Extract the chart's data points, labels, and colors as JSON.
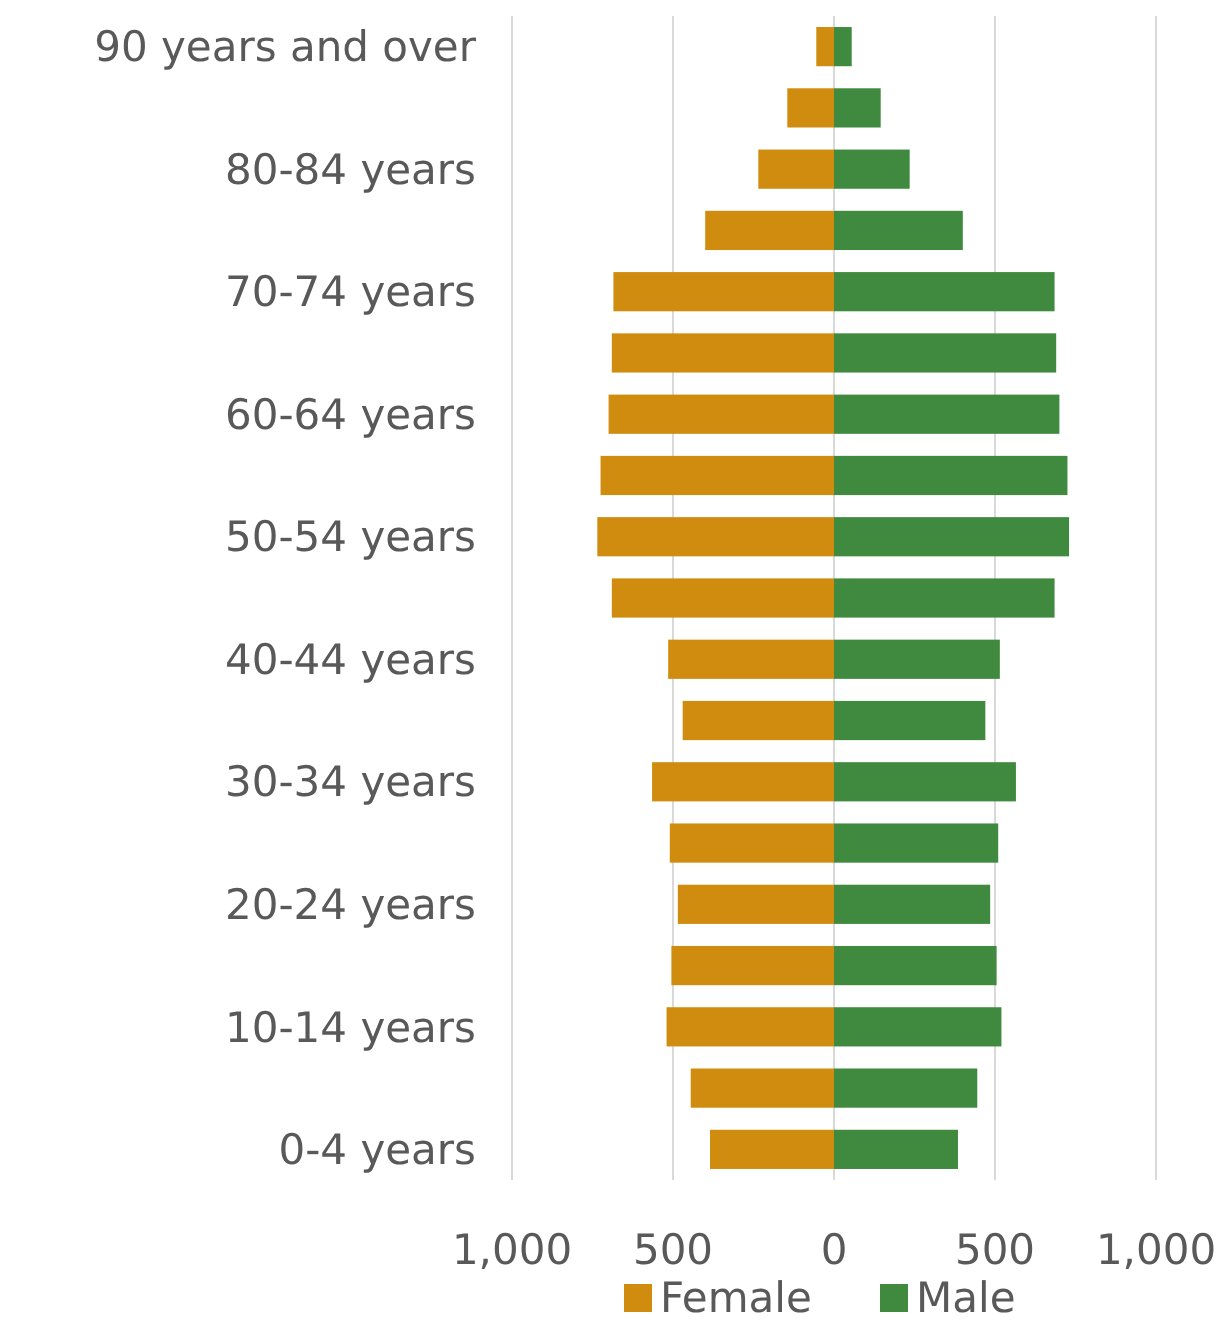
{
  "chart_data": {
    "type": "bar",
    "orientation": "horizontal",
    "stacked": true,
    "categories": [
      "90 years and over",
      null,
      "80-84 years",
      null,
      "70-74 years",
      null,
      "60-64 years",
      null,
      "50-54 years",
      null,
      "40-44 years",
      null,
      "30-34 years",
      null,
      "20-24 years",
      null,
      "10-14 years",
      null,
      "0-4 years"
    ],
    "series": [
      {
        "name": "Female",
        "color": "#d08c0f",
        "values": [
          -55,
          -145,
          -235,
          -400,
          -685,
          -690,
          -700,
          -725,
          -735,
          -690,
          -515,
          -470,
          -565,
          -510,
          -485,
          -505,
          -520,
          -445,
          -385
        ]
      },
      {
        "name": "Male",
        "color": "#3f8a3f",
        "values": [
          55,
          145,
          235,
          400,
          685,
          690,
          700,
          725,
          730,
          685,
          515,
          470,
          565,
          510,
          485,
          505,
          520,
          445,
          385
        ]
      }
    ],
    "xlim": [
      -1000,
      1000
    ],
    "xticks": [
      {
        "value": -1000,
        "label": "1,000"
      },
      {
        "value": -500,
        "label": "500"
      },
      0,
      500,
      {
        "value": 1000,
        "label": "1,000"
      }
    ],
    "grid": "x",
    "legend": "bottom"
  }
}
